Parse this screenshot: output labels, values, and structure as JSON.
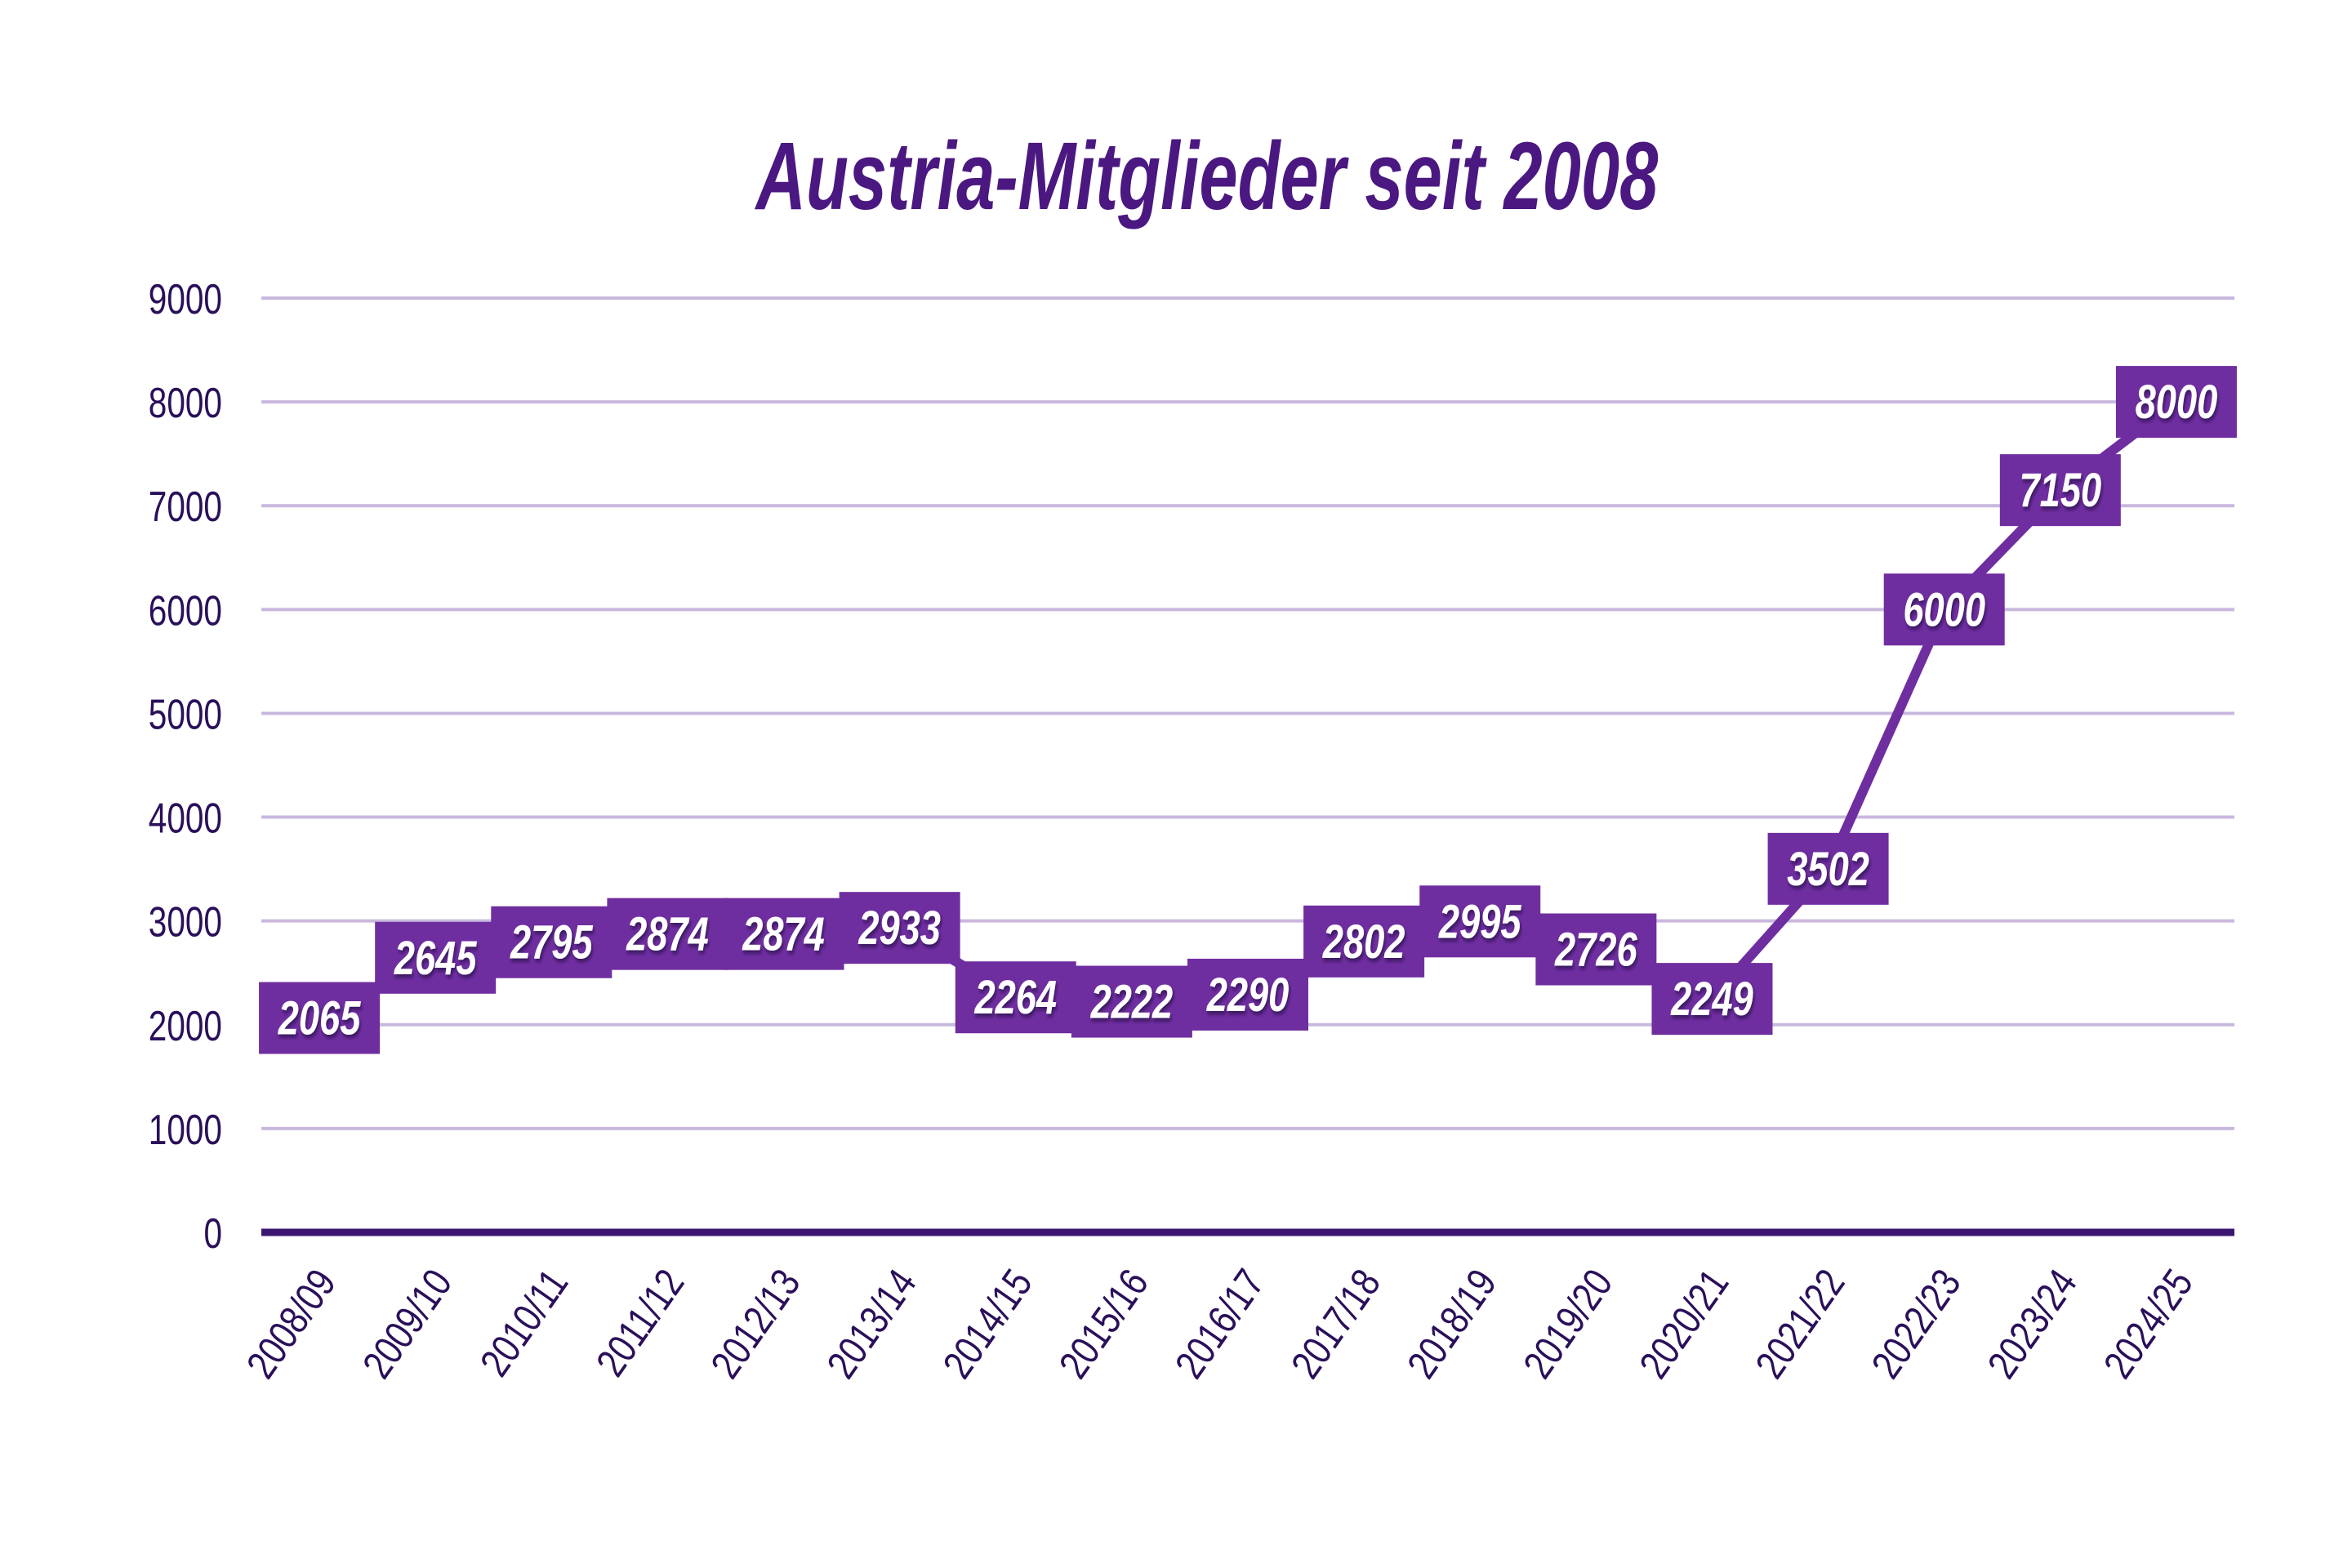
{
  "chart_data": {
    "type": "line",
    "title": "Austria-Mitglieder seit 2008",
    "xlabel": "",
    "ylabel": "",
    "categories": [
      "2008/09",
      "2009/10",
      "2010/11",
      "2011/12",
      "2012/13",
      "2013/14",
      "2014/15",
      "2015/16",
      "2016/17",
      "2017/18",
      "2018/19",
      "2019/20",
      "2020/21",
      "2021/22",
      "2022/23",
      "2023/24",
      "2024/25"
    ],
    "series": [
      {
        "name": "Austria-Mitglieder",
        "values": [
          2065,
          2645,
          2795,
          2874,
          2874,
          2933,
          2264,
          2222,
          2290,
          2802,
          2995,
          2726,
          2249,
          3502,
          6000,
          7150,
          8000
        ]
      }
    ],
    "data_labels": [
      "2065",
      "2645",
      "2795",
      "2874",
      "2874",
      "2933",
      "2264",
      "2222",
      "2290",
      "2802",
      "2995",
      "2726",
      "2249",
      "3502",
      "6000",
      "7150",
      "8000"
    ],
    "yticks": [
      0,
      1000,
      2000,
      3000,
      4000,
      5000,
      6000,
      7000,
      8000,
      9000
    ],
    "ylim": [
      0,
      9000
    ],
    "grid": true,
    "legend": "none",
    "colors": {
      "title": "#4a1880",
      "axis_text": "#2a0f5a",
      "baseline": "#3b1670",
      "gridline": "#c9b8de",
      "line": "#6f2ea0",
      "marker": "#b9a6d9",
      "label_box": "#6f2ea0",
      "label_text": "#ffffff"
    }
  }
}
